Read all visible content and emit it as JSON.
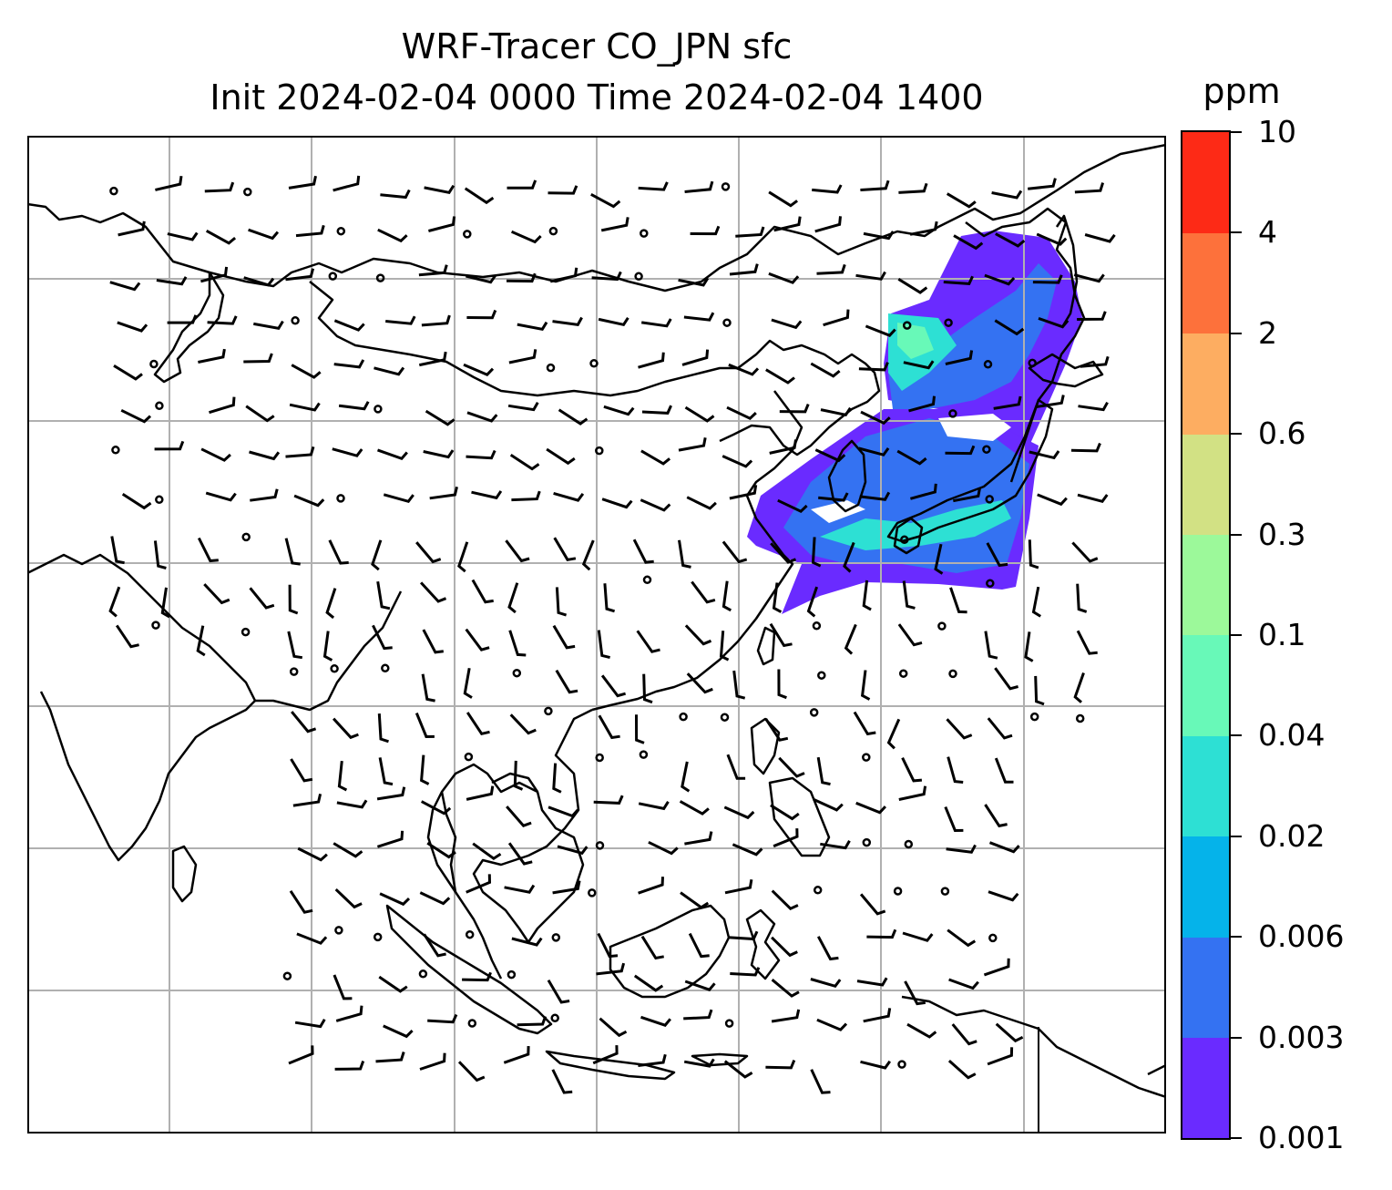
{
  "title": {
    "line1": "WRF-Tracer CO_JPN sfc",
    "line2": "Init 2024-02-04 0000 Time 2024-02-04 1400"
  },
  "colorbar": {
    "unit": "ppm",
    "levels": [
      "0.001",
      "0.003",
      "0.006",
      "0.02",
      "0.04",
      "0.1",
      "0.3",
      "0.6",
      "2",
      "4",
      "10"
    ],
    "colors": [
      "#6a2bff",
      "#3472f2",
      "#05b3ea",
      "#2de0d4",
      "#68f9b8",
      "#9cf99a",
      "#d2e184",
      "#fdad61",
      "#fd713b",
      "#fd2a16"
    ]
  },
  "map": {
    "gridlines": true,
    "gridline_color": "#b0b0b0",
    "coast_color": "#000000",
    "barb_color": "#000000"
  },
  "plume": {
    "description": "",
    "colors": {
      "low": "#6a2bff",
      "mid": "#3472f2",
      "high": "#2de0d4",
      "peak": "#68f9b8"
    }
  }
}
